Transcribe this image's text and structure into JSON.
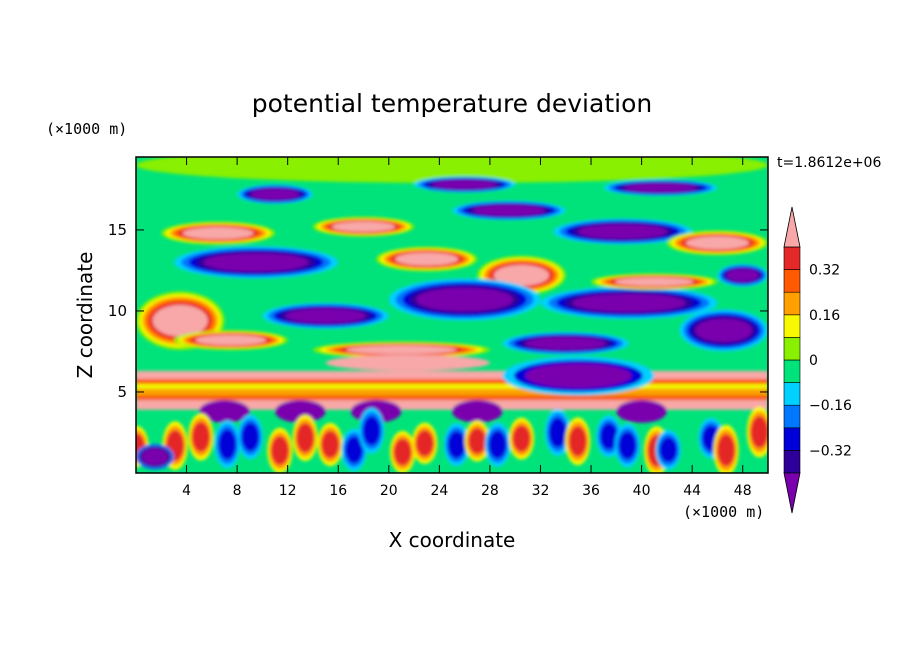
{
  "chart_data": {
    "type": "heatmap",
    "title": "potential temperature deviation",
    "xlabel": "X coordinate",
    "ylabel": "Z coordinate",
    "x_unit": "(×1000 m)",
    "y_unit": "(×1000 m)",
    "time_label": "t=1.8612e+06",
    "xlim": [
      0,
      50
    ],
    "ylim": [
      0,
      19.5
    ],
    "x_ticks": [
      4,
      8,
      12,
      16,
      20,
      24,
      28,
      32,
      36,
      40,
      44,
      48
    ],
    "x_tick_labels": [
      "4",
      "8",
      "12",
      "16",
      "20",
      "24",
      "28",
      "32",
      "36",
      "40",
      "44",
      "48"
    ],
    "y_ticks": [
      5,
      10,
      15
    ],
    "y_tick_labels": [
      "5",
      "10",
      "15"
    ],
    "colorbar": {
      "levels": [
        -0.4,
        -0.32,
        -0.24,
        -0.16,
        -0.08,
        0,
        0.08,
        0.16,
        0.24,
        0.32,
        0.4
      ],
      "tick_values": [
        0.32,
        0.16,
        0,
        -0.16,
        -0.32
      ],
      "tick_labels": [
        "0.32",
        "0.16",
        "0",
        "−0.16",
        "−0.32"
      ],
      "colors": [
        "#7a00ae",
        "#2c0099",
        "#0000d8",
        "#0077ff",
        "#00d0ff",
        "#00e37a",
        "#88f000",
        "#f8f800",
        "#ffa000",
        "#ff5a00",
        "#e52828",
        "#f8a8a8"
      ],
      "extend": "both"
    },
    "background_color": "#00e37a"
  }
}
